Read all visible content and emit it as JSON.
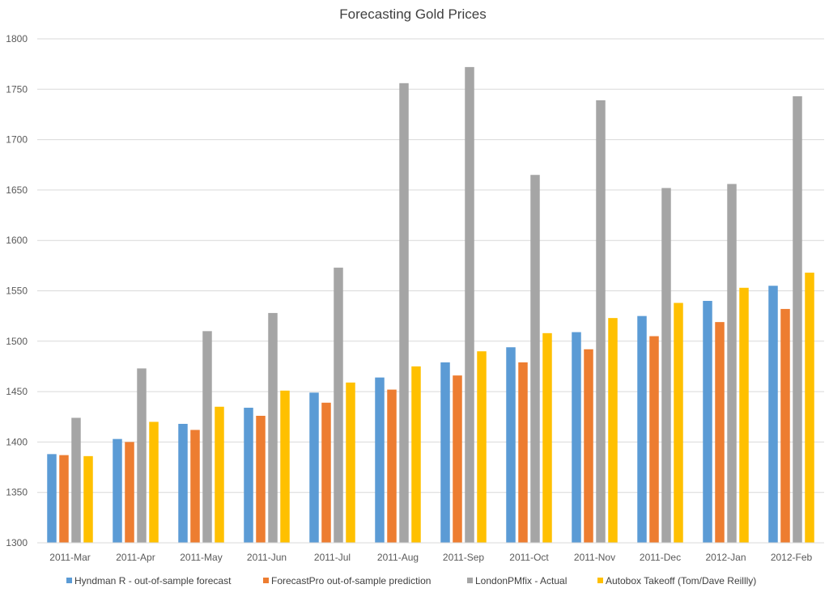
{
  "chart_data": {
    "type": "bar",
    "title": "Forecasting Gold Prices",
    "xlabel": "",
    "ylabel": "",
    "ylim": [
      1300,
      1800
    ],
    "yticks": [
      1300,
      1350,
      1400,
      1450,
      1500,
      1550,
      1600,
      1650,
      1700,
      1750,
      1800
    ],
    "grid": true,
    "legend_position": "bottom",
    "categories": [
      "2011-Mar",
      "2011-Apr",
      "2011-May",
      "2011-Jun",
      "2011-Jul",
      "2011-Aug",
      "2011-Sep",
      "2011-Oct",
      "2011-Nov",
      "2011-Dec",
      "2012-Jan",
      "2012-Feb"
    ],
    "series": [
      {
        "name": "Hyndman R - out-of-sample forecast",
        "color": "#5B9BD5",
        "values": [
          1388,
          1403,
          1418,
          1434,
          1449,
          1464,
          1479,
          1494,
          1509,
          1525,
          1540,
          1555
        ]
      },
      {
        "name": "ForecastPro out-of-sample prediction",
        "color": "#ED7D31",
        "values": [
          1387,
          1400,
          1412,
          1426,
          1439,
          1452,
          1466,
          1479,
          1492,
          1505,
          1519,
          1532
        ]
      },
      {
        "name": "LondonPMfix - Actual",
        "color": "#A5A5A5",
        "values": [
          1424,
          1473,
          1510,
          1528,
          1573,
          1756,
          1772,
          1665,
          1739,
          1652,
          1656,
          1743
        ]
      },
      {
        "name": "Autobox Takeoff (Tom/Dave Reillly)",
        "color": "#FFC000",
        "values": [
          1386,
          1420,
          1435,
          1451,
          1459,
          1475,
          1490,
          1508,
          1523,
          1538,
          1553,
          1568
        ]
      }
    ]
  }
}
